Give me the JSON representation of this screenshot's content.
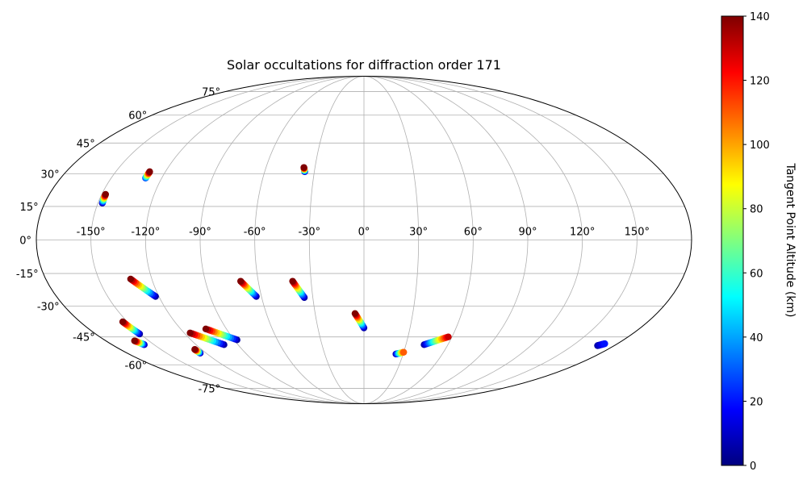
{
  "chart_data": {
    "type": "scatter",
    "projection": "mollweide",
    "title": "Solar occultations for diffraction order 171",
    "lon_ticks": [
      "-150°",
      "-120°",
      "-90°",
      "-60°",
      "-30°",
      "0°",
      "30°",
      "60°",
      "90°",
      "120°",
      "150°"
    ],
    "lon_tick_values": [
      -150,
      -120,
      -90,
      -60,
      -30,
      0,
      30,
      60,
      90,
      120,
      150
    ],
    "lat_ticks": [
      "75°",
      "60°",
      "45°",
      "30°",
      "15°",
      "0°",
      "-15°",
      "-30°",
      "-45°",
      "-60°",
      "-75°"
    ],
    "lat_tick_values": [
      75,
      60,
      45,
      30,
      15,
      0,
      -15,
      -30,
      -45,
      -60,
      -75
    ],
    "grid": true,
    "colorbar": {
      "label": "Tangent Point Altitude (km)",
      "ticks": [
        "0",
        "20",
        "40",
        "60",
        "80",
        "100",
        "120",
        "140"
      ],
      "tick_values": [
        0,
        20,
        40,
        60,
        80,
        100,
        120,
        140
      ],
      "range": [
        0,
        140
      ],
      "colormap": "jet",
      "position": "right"
    },
    "series": [
      {
        "lon_top": -147.8,
        "lat_top": 20.5,
        "lon_bottom": -147.5,
        "lat_bottom": 16.5,
        "alt_top": 140,
        "alt_bottom": 5
      },
      {
        "lon_top": -129.5,
        "lat_top": 31.0,
        "lon_bottom": -129.6,
        "lat_bottom": 28.0,
        "alt_top": 140,
        "alt_bottom": 25
      },
      {
        "lon_top": -36.8,
        "lat_top": 33.0,
        "lon_bottom": -35.8,
        "lat_bottom": 31.0,
        "alt_top": 140,
        "alt_bottom": 5
      },
      {
        "lon_top": -132.0,
        "lat_top": -17.5,
        "lon_bottom": -122.0,
        "lat_bottom": -25.5,
        "alt_top": 140,
        "alt_bottom": 5
      },
      {
        "lon_top": -70.0,
        "lat_top": -18.5,
        "lon_bottom": -63.0,
        "lat_bottom": -25.5,
        "alt_top": 140,
        "alt_bottom": 5
      },
      {
        "lon_top": -40.5,
        "lat_top": -18.5,
        "lon_bottom": -35.0,
        "lat_bottom": -26.0,
        "alt_top": 140,
        "alt_bottom": 5
      },
      {
        "lon_top": -5.5,
        "lat_top": -33.5,
        "lon_bottom": 0.0,
        "lat_bottom": -40.5,
        "alt_top": 140,
        "alt_bottom": 5
      },
      {
        "lon_top": -153.0,
        "lat_top": -37.5,
        "lon_bottom": -150.5,
        "lat_bottom": -43.5,
        "alt_top": 140,
        "alt_bottom": 5
      },
      {
        "lon_top": -116.0,
        "lat_top": -43.0,
        "lon_bottom": -100.0,
        "lat_bottom": -49.0,
        "alt_top": 140,
        "alt_bottom": 5
      },
      {
        "lon_top": -103.5,
        "lat_top": -41.0,
        "lon_bottom": -88.0,
        "lat_bottom": -46.5,
        "alt_top": 140,
        "alt_bottom": 5
      },
      {
        "lon_top": -160.0,
        "lat_top": -47.0,
        "lon_bottom": -157.0,
        "lat_bottom": -49.0,
        "alt_top": 140,
        "alt_bottom": 5
      },
      {
        "lon_top": -125.0,
        "lat_top": -51.5,
        "lon_bottom": -124.5,
        "lat_bottom": -53.5,
        "alt_top": 140,
        "alt_bottom": 5
      },
      {
        "lon_top": 57.5,
        "lat_top": -45.0,
        "lon_bottom": 43.0,
        "lat_bottom": -49.0,
        "alt_top": 130,
        "alt_bottom": 5
      },
      {
        "lon_top": 30.0,
        "lat_top": -53.0,
        "lon_bottom": 24.5,
        "lat_bottom": -54.0,
        "alt_top": 110,
        "alt_bottom": 5
      },
      {
        "lon_top": 171.0,
        "lat_top": -48.5,
        "lon_bottom": 168.0,
        "lat_bottom": -49.5,
        "alt_top": 20,
        "alt_bottom": 5
      }
    ]
  }
}
